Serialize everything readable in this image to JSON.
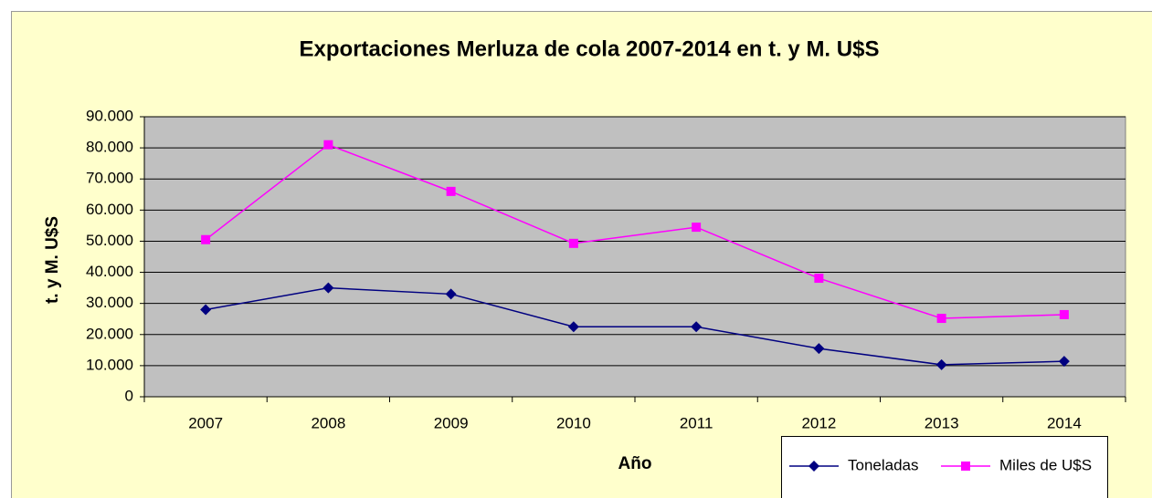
{
  "chart_data": {
    "type": "line",
    "title": "Exportaciones Merluza de cola 2007-2014 en t. y M. U$S",
    "x_label": "Año",
    "y_label": "t. y M. U$S",
    "categories": [
      "2007",
      "2008",
      "2009",
      "2010",
      "2011",
      "2012",
      "2013",
      "2014"
    ],
    "series": [
      {
        "name": "Toneladas",
        "color": "#000080",
        "marker": "diamond",
        "values": [
          28000,
          35000,
          33000,
          22500,
          22500,
          15500,
          10300,
          11400
        ]
      },
      {
        "name": "Miles de U$S",
        "color": "#ff00ff",
        "marker": "square",
        "values": [
          50500,
          81000,
          66000,
          49300,
          54500,
          38100,
          25200,
          26400
        ]
      }
    ],
    "ylim": [
      0,
      90000
    ],
    "yticks": [
      0,
      {
        "value": 10000,
        "label": "10.000"
      },
      {
        "value": 20000,
        "label": "20.000"
      },
      {
        "value": 30000,
        "label": "30.000"
      },
      {
        "value": 40000,
        "label": "40.000"
      },
      {
        "value": 50000,
        "label": "50.000"
      },
      {
        "value": 60000,
        "label": "60.000"
      },
      {
        "value": 70000,
        "label": "70.000"
      },
      {
        "value": 80000,
        "label": "80.000"
      },
      {
        "value": 90000,
        "label": "90.000"
      }
    ],
    "grid": true,
    "legend": "bottom-right"
  }
}
